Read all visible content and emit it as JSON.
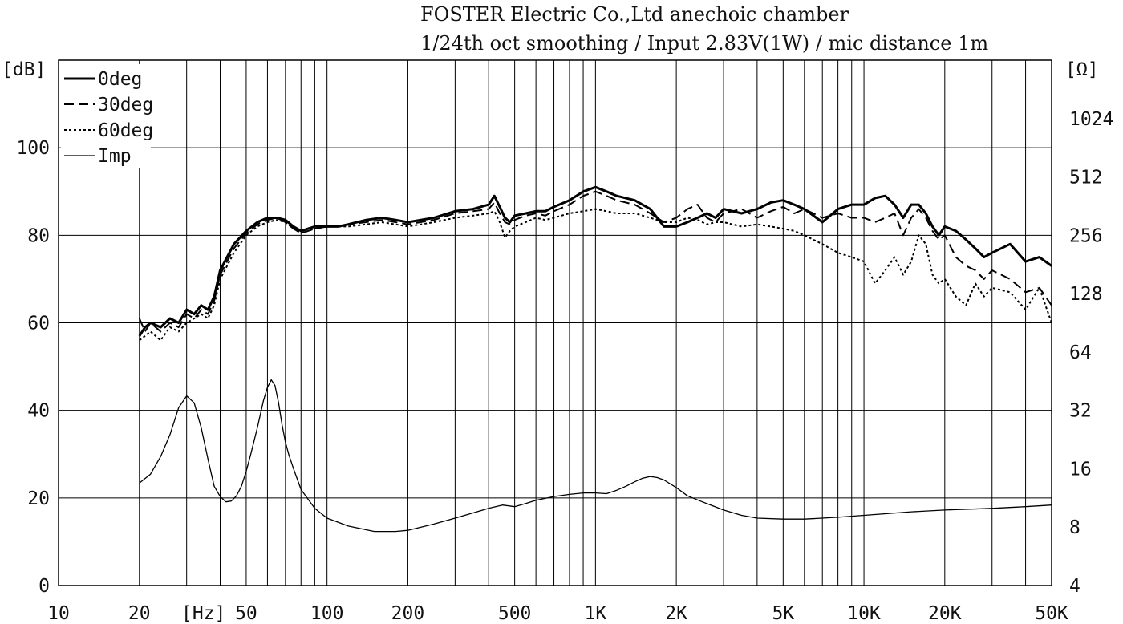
{
  "chart_data": {
    "type": "line",
    "title": "FOSTER Electric Co.,Ltd  anechoic chamber",
    "subtitle": "1/24th oct smoothing / Input 2.83V(1W) / mic distance 1m",
    "xlabel": "[Hz]",
    "ylabel": "[dB]",
    "y2label": "[Ω]",
    "x_scale": "log",
    "xlim": [
      10,
      50000
    ],
    "ylim": [
      0,
      120
    ],
    "y2_scale": "log2",
    "y2lim": [
      4,
      2048
    ],
    "x_ticks": [
      {
        "value": 10,
        "label": "10"
      },
      {
        "value": 20,
        "label": "20"
      },
      {
        "value": 50,
        "label": "50"
      },
      {
        "value": 100,
        "label": "100"
      },
      {
        "value": 200,
        "label": "200"
      },
      {
        "value": 500,
        "label": "500"
      },
      {
        "value": 1000,
        "label": "1K"
      },
      {
        "value": 2000,
        "label": "2K"
      },
      {
        "value": 5000,
        "label": "5K"
      },
      {
        "value": 10000,
        "label": "10K"
      },
      {
        "value": 20000,
        "label": "20K"
      },
      {
        "value": 50000,
        "label": "50K"
      }
    ],
    "y_ticks": [
      {
        "value": 0,
        "label": "0"
      },
      {
        "value": 20,
        "label": "20"
      },
      {
        "value": 40,
        "label": "40"
      },
      {
        "value": 60,
        "label": "60"
      },
      {
        "value": 80,
        "label": "80"
      },
      {
        "value": 100,
        "label": "100"
      }
    ],
    "y2_ticks": [
      {
        "value": 4,
        "label": "4"
      },
      {
        "value": 8,
        "label": "8"
      },
      {
        "value": 16,
        "label": "16"
      },
      {
        "value": 32,
        "label": "32"
      },
      {
        "value": 64,
        "label": "64"
      },
      {
        "value": 128,
        "label": "128"
      },
      {
        "value": 256,
        "label": "256"
      },
      {
        "value": 512,
        "label": "512"
      },
      {
        "value": 1024,
        "label": "1024"
      }
    ],
    "grid": true,
    "legend_position": "top-left",
    "series": [
      {
        "name": "0deg",
        "axis": "left",
        "style": "solid-thick",
        "x": [
          20,
          21,
          22,
          24,
          26,
          28,
          30,
          32,
          34,
          36,
          38,
          40,
          45,
          50,
          55,
          60,
          65,
          70,
          75,
          80,
          85,
          90,
          100,
          110,
          120,
          140,
          160,
          180,
          200,
          250,
          300,
          350,
          400,
          420,
          440,
          460,
          480,
          500,
          550,
          600,
          650,
          700,
          800,
          900,
          1000,
          1100,
          1200,
          1400,
          1600,
          1800,
          2000,
          2200,
          2400,
          2600,
          2800,
          3000,
          3500,
          4000,
          4500,
          5000,
          5500,
          6000,
          7000,
          8000,
          9000,
          10000,
          11000,
          12000,
          13000,
          14000,
          15000,
          16000,
          17000,
          18000,
          19000,
          20000,
          22000,
          24000,
          26000,
          28000,
          30000,
          35000,
          40000,
          45000,
          50000
        ],
        "y": [
          57,
          59,
          60,
          59,
          61,
          60,
          63,
          62,
          64,
          63,
          66,
          72,
          78,
          81,
          83,
          84,
          84,
          83.5,
          82,
          81,
          81.5,
          82,
          82,
          82,
          82.5,
          83.5,
          84,
          83.5,
          83,
          84,
          85.5,
          86,
          87,
          89,
          86.5,
          84,
          83,
          84.5,
          85,
          85.5,
          85.5,
          86.5,
          88,
          90,
          91,
          90,
          89,
          88,
          86,
          82,
          82,
          83,
          84,
          85,
          84,
          86,
          85,
          86,
          87.5,
          88,
          87,
          86,
          83,
          86,
          87,
          87,
          88.5,
          89,
          87,
          84,
          87,
          87,
          85,
          82,
          80,
          82,
          81,
          79,
          77,
          75,
          76,
          78,
          74,
          75,
          73
        ]
      },
      {
        "name": "30deg",
        "axis": "left",
        "style": "dashed",
        "x": [
          20,
          21,
          22,
          24,
          26,
          28,
          30,
          32,
          34,
          36,
          38,
          40,
          45,
          50,
          55,
          60,
          65,
          70,
          75,
          80,
          85,
          90,
          100,
          110,
          120,
          140,
          160,
          180,
          200,
          250,
          300,
          350,
          400,
          420,
          440,
          460,
          480,
          500,
          550,
          600,
          650,
          700,
          800,
          900,
          1000,
          1100,
          1200,
          1400,
          1600,
          1800,
          2000,
          2200,
          2400,
          2600,
          2800,
          3000,
          3500,
          4000,
          4500,
          5000,
          5500,
          6000,
          7000,
          8000,
          9000,
          10000,
          11000,
          12000,
          13000,
          14000,
          15000,
          16000,
          17000,
          18000,
          19000,
          20000,
          22000,
          24000,
          26000,
          28000,
          30000,
          35000,
          40000,
          45000,
          50000
        ],
        "y": [
          61,
          58,
          60,
          58,
          60,
          59,
          62,
          61,
          63,
          62,
          65,
          71,
          77,
          80.5,
          82.5,
          83.5,
          84,
          83,
          81.5,
          80.5,
          81,
          81.5,
          82,
          82,
          82.5,
          83,
          83.5,
          83,
          82.5,
          83.5,
          85,
          85.5,
          86,
          87.5,
          85,
          83,
          82.5,
          83.5,
          84.5,
          85,
          84.5,
          85.5,
          87,
          89,
          90,
          89,
          88,
          87,
          85,
          83,
          84,
          86,
          87,
          84,
          83,
          85,
          86,
          84,
          85.5,
          86.5,
          85,
          86,
          84,
          85,
          84,
          84,
          83,
          84,
          85,
          80,
          84,
          86,
          84,
          81,
          79,
          80,
          75,
          73,
          72,
          70,
          72,
          70,
          67,
          68,
          64
        ]
      },
      {
        "name": "60deg",
        "axis": "left",
        "style": "dotted",
        "x": [
          20,
          21,
          22,
          24,
          26,
          28,
          30,
          32,
          34,
          36,
          38,
          40,
          45,
          50,
          55,
          60,
          65,
          70,
          75,
          80,
          85,
          90,
          100,
          110,
          120,
          140,
          160,
          180,
          200,
          250,
          300,
          350,
          400,
          420,
          440,
          460,
          480,
          500,
          550,
          600,
          650,
          700,
          800,
          900,
          1000,
          1100,
          1200,
          1400,
          1600,
          1800,
          2000,
          2200,
          2400,
          2600,
          2800,
          3000,
          3500,
          4000,
          4500,
          5000,
          5500,
          6000,
          7000,
          8000,
          9000,
          10000,
          11000,
          12000,
          13000,
          14000,
          15000,
          16000,
          17000,
          18000,
          19000,
          20000,
          22000,
          24000,
          26000,
          28000,
          30000,
          35000,
          40000,
          45000,
          50000
        ],
        "y": [
          56,
          57,
          58,
          56,
          59,
          58,
          60,
          61,
          62,
          61,
          64,
          70,
          76,
          80,
          82,
          83,
          83.5,
          83,
          81.5,
          80.5,
          81,
          81.5,
          82,
          82,
          82,
          82.5,
          83,
          82.5,
          82,
          83,
          84,
          84.5,
          85,
          85.5,
          83,
          79.5,
          81,
          82,
          83,
          84,
          83.5,
          84,
          85,
          85.5,
          86,
          85.5,
          85,
          85,
          84,
          83,
          83,
          84,
          83.5,
          82.5,
          83,
          83,
          82,
          82.5,
          82,
          81.5,
          81,
          80,
          78,
          76,
          75,
          74,
          69,
          72,
          75,
          71,
          74,
          80,
          78,
          71,
          69,
          70,
          66,
          64,
          69,
          66,
          68,
          67,
          63,
          68,
          60
        ]
      },
      {
        "name": "Imp",
        "axis": "right",
        "style": "solid-thin",
        "x": [
          20,
          22,
          24,
          26,
          28,
          30,
          32,
          34,
          36,
          38,
          40,
          42,
          44,
          46,
          48,
          50,
          52,
          55,
          58,
          60,
          62,
          64,
          66,
          68,
          70,
          72,
          75,
          80,
          90,
          100,
          120,
          150,
          180,
          200,
          250,
          300,
          400,
          450,
          500,
          550,
          600,
          700,
          800,
          900,
          1000,
          1100,
          1200,
          1300,
          1400,
          1500,
          1600,
          1700,
          1800,
          2000,
          2200,
          2500,
          3000,
          3500,
          4000,
          5000,
          6000,
          8000,
          10000,
          15000,
          20000,
          30000,
          40000,
          50000
        ],
        "y": [
          13.5,
          15.0,
          18.5,
          24.0,
          33.0,
          38.0,
          35.0,
          26.0,
          18.0,
          13.0,
          11.5,
          10.8,
          10.9,
          11.6,
          13.0,
          15.5,
          19.0,
          26.0,
          36.0,
          42.0,
          46.0,
          43.0,
          35.0,
          27.0,
          22.0,
          19.0,
          16.0,
          12.5,
          10.0,
          8.9,
          8.1,
          7.6,
          7.6,
          7.7,
          8.3,
          8.9,
          10.0,
          10.4,
          10.2,
          10.6,
          11.0,
          11.5,
          11.8,
          12.0,
          12.0,
          11.9,
          12.4,
          13.0,
          13.7,
          14.3,
          14.6,
          14.4,
          14.0,
          12.8,
          11.6,
          10.8,
          9.8,
          9.2,
          8.9,
          8.8,
          8.8,
          9.0,
          9.2,
          9.6,
          9.8,
          10.0,
          10.2,
          10.4
        ]
      }
    ]
  }
}
